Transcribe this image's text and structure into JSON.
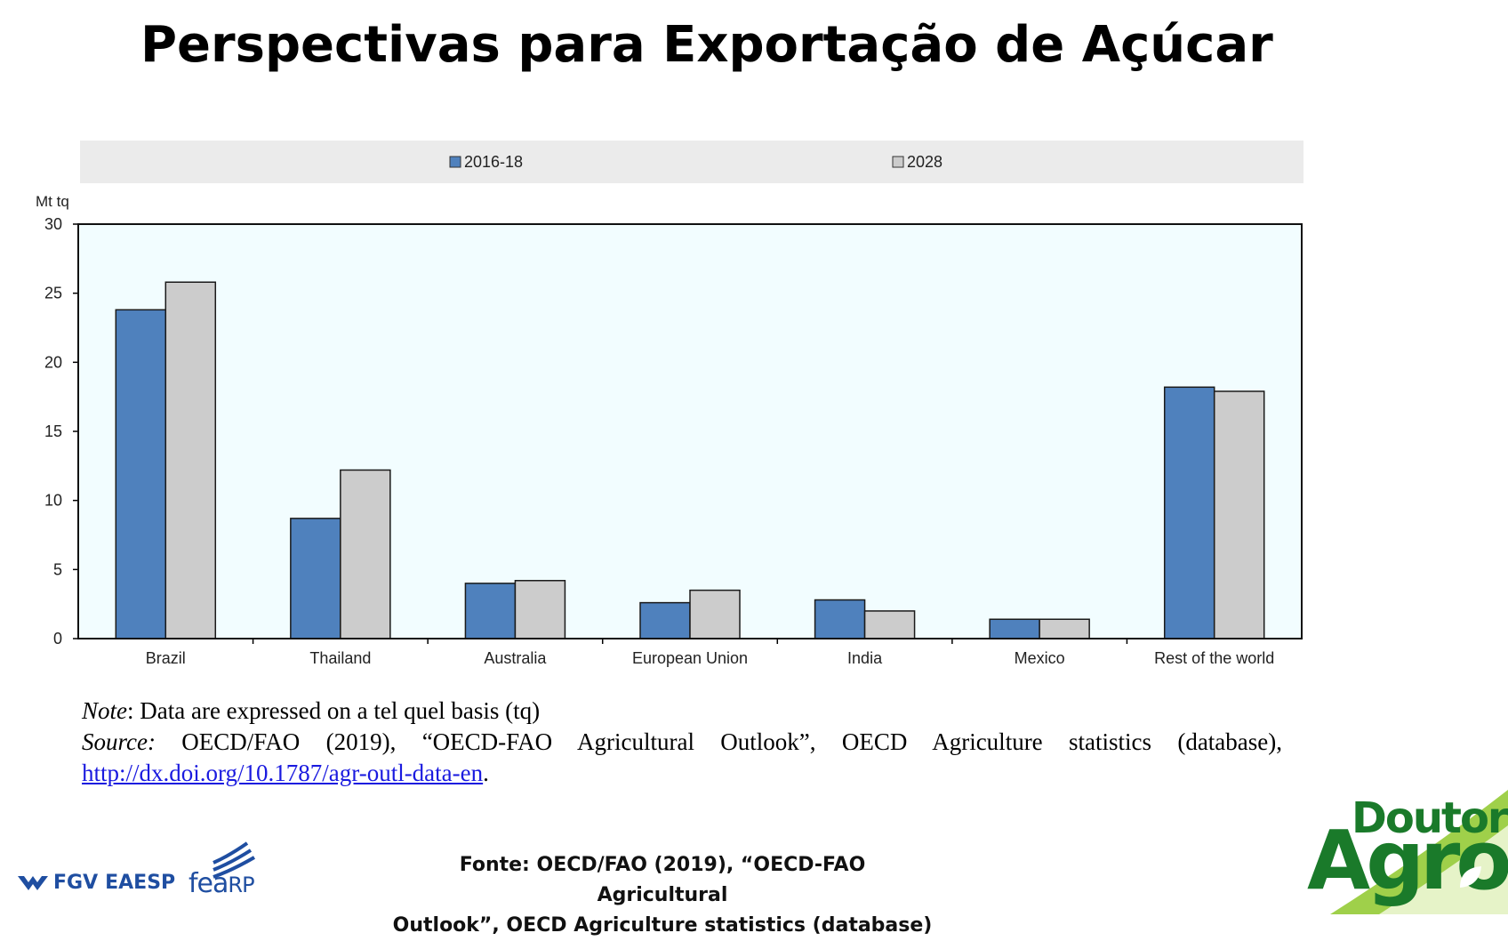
{
  "page": {
    "title": "Perspectivas para Exportação de Açúcar"
  },
  "chart_data": {
    "type": "bar",
    "title": "",
    "xlabel": "",
    "ylabel": "Mt tq",
    "ylim": [
      0,
      30
    ],
    "yticks": [
      "0",
      "5",
      "10",
      "15",
      "20",
      "25",
      "30"
    ],
    "categories": [
      "Brazil",
      "Thailand",
      "Australia",
      "European Union",
      "India",
      "Mexico",
      "Rest of the world"
    ],
    "series": [
      {
        "name": "2016-18",
        "color": "#4f81bd",
        "values": [
          23.8,
          8.7,
          4.0,
          2.6,
          2.8,
          1.4,
          18.2
        ]
      },
      {
        "name": "2028",
        "color": "#cccccc",
        "values": [
          25.8,
          12.2,
          4.2,
          3.5,
          2.0,
          1.4,
          17.9
        ]
      }
    ],
    "legend": "top",
    "grid": false,
    "plot_background": "#f2fdff"
  },
  "note": {
    "note_label": "Note",
    "note_text": ": Data are expressed on a tel quel basis (tq)",
    "source_label": "Source:",
    "source_text": " OECD/FAO (2019), “OECD-FAO Agricultural Outlook”, OECD Agriculture statistics (database),",
    "link_text": "http://dx.doi.org/10.1787/agr-outl-data-en",
    "link_suffix": "."
  },
  "footer": {
    "source_line1": "Fonte: OECD/FAO (2019), “OECD-FAO Agricultural",
    "source_line2": "Outlook”, OECD Agriculture statistics (database)"
  },
  "logos": {
    "fgv": "FGV",
    "eaesp": "EAESP",
    "fea": "fea",
    "rp": "RP",
    "doutor": "Doutor",
    "agro": "Agro",
    "icons": [
      "fgv-chevron-icon",
      "fea-lines-icon",
      "leaf-icon"
    ]
  }
}
